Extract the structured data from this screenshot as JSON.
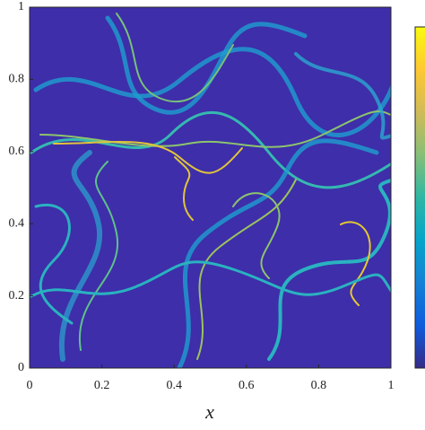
{
  "chart_data": {
    "type": "field",
    "xlabel": "x",
    "xlim": [
      0,
      1
    ],
    "ylim": [
      0,
      1
    ],
    "xticks": [
      0,
      0.2,
      0.4,
      0.6,
      0.8,
      1
    ],
    "yticks": [
      0,
      0.2,
      0.4,
      0.6,
      0.8,
      1
    ],
    "background": "#3e2ea9",
    "colormap": [
      "#352a87",
      "#0f5cdd",
      "#1481d6",
      "#06a4ca",
      "#2eb7a4",
      "#87bf77",
      "#d1bb59",
      "#fec832",
      "#f9fb0e"
    ]
  }
}
